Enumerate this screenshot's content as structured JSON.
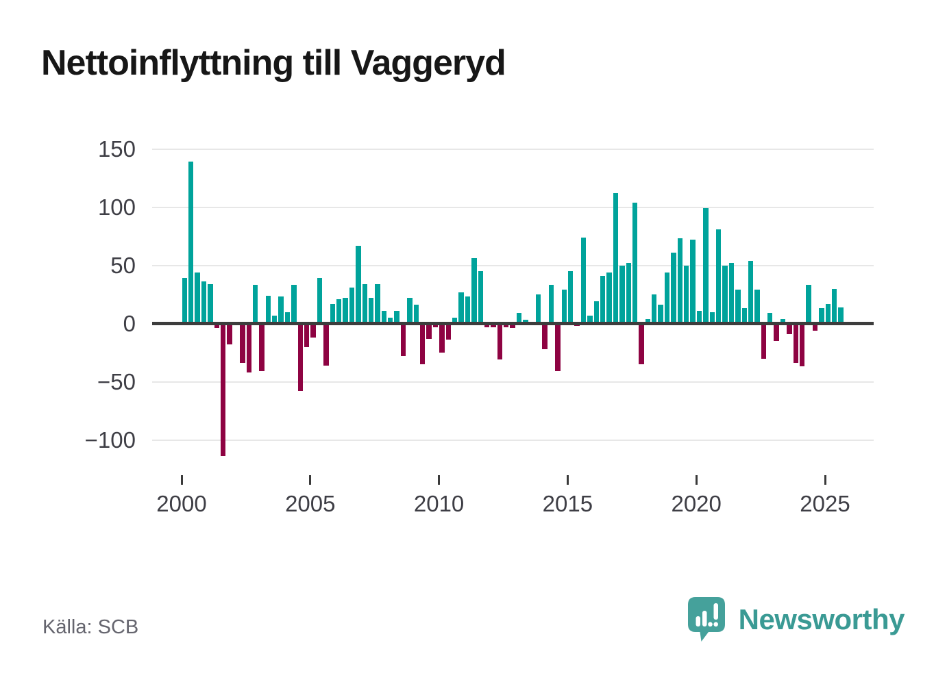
{
  "chart": {
    "title": "Nettoinflyttning till Vaggeryd",
    "source": "Källa: SCB",
    "brand": "Newsworthy"
  },
  "colors": {
    "positive": "#00a39b",
    "negative": "#8e0342",
    "zero_line": "#3d3d3d",
    "grid": "#e7e7e7",
    "title": "#171717",
    "axis_text": "#3e3e45",
    "source_text": "#65656e",
    "brand_teal": "#3a9a94",
    "icon_teal": "#45a19b"
  },
  "chart_data": {
    "type": "bar",
    "title": "Nettoinflyttning till Vaggeryd",
    "xlabel": "",
    "ylabel": "",
    "x_frequency": "quarterly",
    "grid": "horizontal",
    "legend": "none",
    "ylim": [
      -138,
      166
    ],
    "y_ticks": [
      150,
      100,
      50,
      0,
      -50,
      -100
    ],
    "y_tick_labels": [
      "150",
      "100",
      "50",
      "0",
      "−50",
      "−100"
    ],
    "x_ticks": [
      2000,
      2005,
      2010,
      2015,
      2020,
      2025
    ],
    "x_tick_labels": [
      "2000",
      "2005",
      "2010",
      "2015",
      "2020",
      "2025"
    ],
    "categories": [
      "2000 Q1",
      "2000 Q2",
      "2000 Q3",
      "2000 Q4",
      "2001 Q1",
      "2001 Q2",
      "2001 Q3",
      "2001 Q4",
      "2002 Q1",
      "2002 Q2",
      "2002 Q3",
      "2002 Q4",
      "2003 Q1",
      "2003 Q2",
      "2003 Q3",
      "2003 Q4",
      "2004 Q1",
      "2004 Q2",
      "2004 Q3",
      "2004 Q4",
      "2005 Q1",
      "2005 Q2",
      "2005 Q3",
      "2005 Q4",
      "2006 Q1",
      "2006 Q2",
      "2006 Q3",
      "2006 Q4",
      "2007 Q1",
      "2007 Q2",
      "2007 Q3",
      "2007 Q4",
      "2008 Q1",
      "2008 Q2",
      "2008 Q3",
      "2008 Q4",
      "2009 Q1",
      "2009 Q2",
      "2009 Q3",
      "2009 Q4",
      "2010 Q1",
      "2010 Q2",
      "2010 Q3",
      "2010 Q4",
      "2011 Q1",
      "2011 Q2",
      "2011 Q3",
      "2011 Q4",
      "2012 Q1",
      "2012 Q2",
      "2012 Q3",
      "2012 Q4",
      "2013 Q1",
      "2013 Q2",
      "2013 Q3",
      "2013 Q4",
      "2014 Q1",
      "2014 Q2",
      "2014 Q3",
      "2014 Q4",
      "2015 Q1",
      "2015 Q2",
      "2015 Q3",
      "2015 Q4",
      "2016 Q1",
      "2016 Q2",
      "2016 Q3",
      "2016 Q4",
      "2017 Q1",
      "2017 Q2",
      "2017 Q3",
      "2017 Q4",
      "2018 Q1",
      "2018 Q2",
      "2018 Q3",
      "2018 Q4",
      "2019 Q1",
      "2019 Q2",
      "2019 Q3",
      "2019 Q4",
      "2020 Q1",
      "2020 Q2",
      "2020 Q3",
      "2020 Q4",
      "2021 Q1",
      "2021 Q2",
      "2021 Q3",
      "2021 Q4",
      "2022 Q1",
      "2022 Q2",
      "2022 Q3",
      "2022 Q4",
      "2023 Q1",
      "2023 Q2",
      "2023 Q3",
      "2023 Q4",
      "2024 Q1",
      "2024 Q2",
      "2024 Q3",
      "2024 Q4",
      "2025 Q1",
      "2025 Q2",
      "2025 Q3"
    ],
    "values": [
      39,
      139,
      44,
      36,
      34,
      -4,
      -114,
      -18,
      0,
      -34,
      -42,
      33,
      -41,
      24,
      7,
      23,
      10,
      33,
      -58,
      -20,
      -12,
      39,
      -36,
      17,
      21,
      22,
      31,
      67,
      34,
      22,
      34,
      11,
      5,
      11,
      -28,
      22,
      16,
      -35,
      -13,
      -3,
      -25,
      -14,
      5,
      27,
      23,
      56,
      45,
      -3,
      -3,
      -31,
      -3,
      -4,
      9,
      3,
      0,
      25,
      -22,
      33,
      -41,
      29,
      45,
      -2,
      74,
      7,
      19,
      41,
      44,
      112,
      50,
      52,
      104,
      -35,
      4,
      25,
      16,
      44,
      61,
      73,
      50,
      72,
      11,
      99,
      10,
      81,
      50,
      52,
      29,
      13,
      54,
      29,
      -30,
      9,
      -15,
      4,
      -9,
      -34,
      -37,
      33,
      -6,
      13,
      17,
      30,
      14
    ]
  }
}
